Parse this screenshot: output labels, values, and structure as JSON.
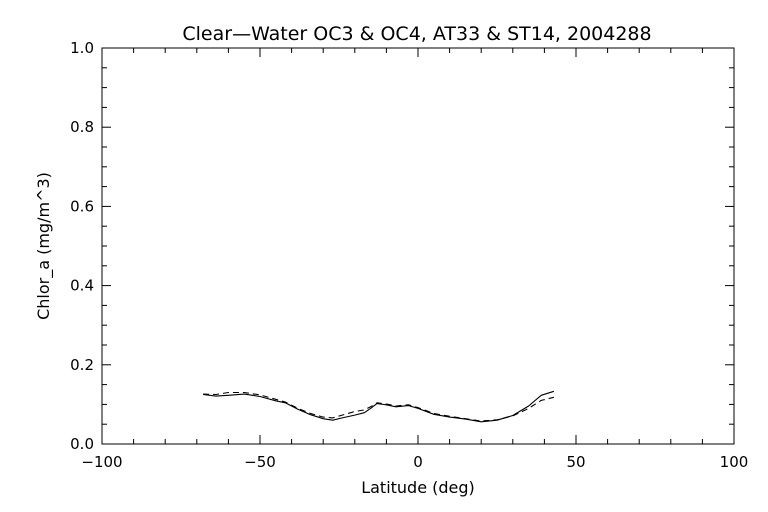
{
  "chart_data": {
    "type": "line",
    "title": "Clear—Water OC3 & OC4, AT33 & ST14, 2004288",
    "xlabel": "Latitude (deg)",
    "ylabel": "Chlor_a (mg/m^3)",
    "xlim": [
      -100,
      100
    ],
    "ylim": [
      0.0,
      1.0
    ],
    "x_ticks": [
      -100,
      -50,
      0,
      50,
      100
    ],
    "x_tick_labels": [
      "−100",
      "−50",
      "0",
      "50",
      "100"
    ],
    "y_ticks": [
      0.0,
      0.2,
      0.4,
      0.6,
      0.8,
      1.0
    ],
    "y_tick_labels": [
      "0.0",
      "0.2",
      "0.4",
      "0.6",
      "0.8",
      "1.0"
    ],
    "grid": false,
    "series": [
      {
        "style": "solid",
        "color": "#000000",
        "x": [
          -68,
          -64,
          -60,
          -55,
          -50,
          -45,
          -42,
          -38,
          -34,
          -30,
          -27,
          -24,
          -20,
          -17,
          -15,
          -13,
          -10,
          -7,
          -3,
          0,
          5,
          10,
          15,
          20,
          25,
          30,
          35,
          39,
          43
        ],
        "y": [
          0.125,
          0.121,
          0.123,
          0.126,
          0.12,
          0.109,
          0.104,
          0.088,
          0.074,
          0.064,
          0.06,
          0.066,
          0.073,
          0.079,
          0.09,
          0.102,
          0.099,
          0.094,
          0.097,
          0.09,
          0.075,
          0.068,
          0.063,
          0.056,
          0.06,
          0.072,
          0.096,
          0.123,
          0.133
        ]
      },
      {
        "style": "dashed",
        "color": "#000000",
        "x": [
          -68,
          -64,
          -60,
          -55,
          -50,
          -45,
          -42,
          -38,
          -34,
          -30,
          -27,
          -24,
          -20,
          -17,
          -15,
          -13,
          -10,
          -7,
          -3,
          0,
          5,
          10,
          15,
          20,
          25,
          30,
          35,
          39,
          43
        ],
        "y": [
          0.126,
          0.125,
          0.13,
          0.13,
          0.124,
          0.113,
          0.106,
          0.09,
          0.077,
          0.068,
          0.066,
          0.073,
          0.082,
          0.086,
          0.094,
          0.104,
          0.101,
          0.096,
          0.099,
          0.092,
          0.077,
          0.07,
          0.064,
          0.058,
          0.061,
          0.071,
          0.09,
          0.11,
          0.118
        ]
      }
    ]
  }
}
